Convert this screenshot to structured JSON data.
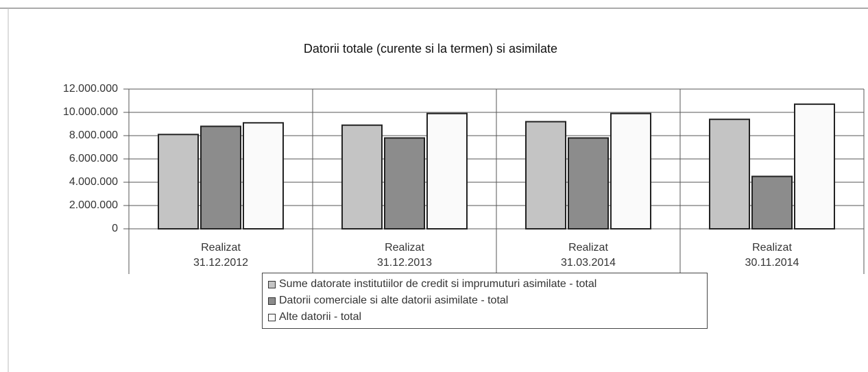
{
  "chart_data": {
    "type": "bar",
    "title": "Datorii totale (curente si la termen) si asimilate",
    "categories": [
      [
        "Realizat",
        "31.12.2012"
      ],
      [
        "Realizat",
        "31.12.2013"
      ],
      [
        "Realizat",
        "31.03.2014"
      ],
      [
        "Realizat",
        "30.11.2014"
      ]
    ],
    "series": [
      {
        "name": "Sume datorate institutiilor de credit si imprumuturi asimilate - total",
        "color": "#c4c4c4",
        "values": [
          8100000,
          8900000,
          9200000,
          9400000
        ]
      },
      {
        "name": "Datorii comerciale si alte datorii asimilate - total",
        "color": "#8c8c8c",
        "values": [
          8800000,
          7800000,
          7800000,
          4500000
        ]
      },
      {
        "name": "Alte datorii - total",
        "color": "#fafafa",
        "values": [
          9100000,
          9900000,
          9900000,
          10700000
        ]
      }
    ],
    "ylim": [
      0,
      12000000
    ],
    "yticks": [
      0,
      {
        "value": 2000000,
        "label": "2.000.000"
      },
      {
        "value": 4000000,
        "label": "4.000.000"
      },
      {
        "value": 6000000,
        "label": "6.000.000"
      },
      {
        "value": 8000000,
        "label": "8.000.000"
      },
      {
        "value": 10000000,
        "label": "10.000.000"
      },
      {
        "value": 12000000,
        "label": "12.000.000"
      }
    ],
    "grid": true,
    "legend": "bottom"
  }
}
